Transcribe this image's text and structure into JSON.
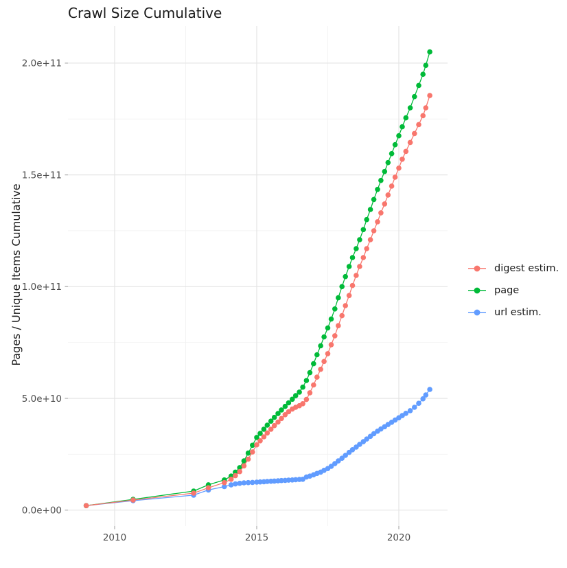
{
  "title": "Crawl Size Cumulative",
  "y_axis_label": "Pages / Unique Items Cumulative",
  "colors": {
    "background": "#ffffff",
    "grid_major": "#e4e4e4",
    "grid_minor": "#f2f2f2",
    "tick_mark": "#b3b3b3",
    "tick_label": "#4d4d4d",
    "text": "#1a1a1a"
  },
  "chart_data": {
    "type": "scatter",
    "title": "Crawl Size Cumulative",
    "xlabel": "",
    "ylabel": "Pages / Unique Items Cumulative",
    "grid": "on",
    "legend_position": "right",
    "values_unit": "billions (1e9)",
    "xlim": [
      2008.4,
      2021.7
    ],
    "ylim_billions": [
      0,
      215
    ],
    "x_ticks": [
      {
        "x": 2010,
        "label": "2010"
      },
      {
        "x": 2015,
        "label": "2015"
      },
      {
        "x": 2020,
        "label": "2020"
      }
    ],
    "x_minor_ticks": [
      2012.5,
      2017.5
    ],
    "y_ticks": [
      {
        "v": 0,
        "label": "0.0e+00"
      },
      {
        "v": 50,
        "label": "5.0e+10"
      },
      {
        "v": 100,
        "label": "1.0e+11"
      },
      {
        "v": 150,
        "label": "1.5e+11"
      },
      {
        "v": 200,
        "label": "2.0e+11"
      }
    ],
    "y_minor_ticks": [
      25,
      75,
      125,
      175
    ],
    "x": [
      2009.0,
      2010.65,
      2012.78,
      2013.3,
      2013.86,
      2014.1,
      2014.25,
      2014.4,
      2014.55,
      2014.7,
      2014.85,
      2015.0,
      2015.12,
      2015.25,
      2015.37,
      2015.5,
      2015.62,
      2015.75,
      2015.87,
      2016.0,
      2016.12,
      2016.25,
      2016.37,
      2016.5,
      2016.62,
      2016.75,
      2016.87,
      2017.0,
      2017.12,
      2017.25,
      2017.37,
      2017.5,
      2017.62,
      2017.75,
      2017.87,
      2018.0,
      2018.12,
      2018.25,
      2018.37,
      2018.5,
      2018.62,
      2018.75,
      2018.87,
      2019.0,
      2019.12,
      2019.25,
      2019.37,
      2019.5,
      2019.62,
      2019.75,
      2019.87,
      2020.0,
      2020.12,
      2020.25,
      2020.4,
      2020.55,
      2020.7,
      2020.85,
      2020.95,
      2021.09
    ],
    "series": [
      {
        "name": "digest estim.",
        "color": "#F8766D",
        "values": [
          2.0,
          4.5,
          7.6,
          10.0,
          12.3,
          13.8,
          15.4,
          17.2,
          19.8,
          22.8,
          26.0,
          29.2,
          31.0,
          32.8,
          34.5,
          36.2,
          37.8,
          39.4,
          41.0,
          42.7,
          44.0,
          45.2,
          46.0,
          46.7,
          47.6,
          49.5,
          52.5,
          56.0,
          59.5,
          63.0,
          66.5,
          70.0,
          74.0,
          78.0,
          82.5,
          87.0,
          91.5,
          96.0,
          100.5,
          105.0,
          109.0,
          113.0,
          117.0,
          121.0,
          125.0,
          129.0,
          133.0,
          137.0,
          141.0,
          145.0,
          149.0,
          153.0,
          157.0,
          160.5,
          164.5,
          168.5,
          172.5,
          176.5,
          180.0,
          185.5
        ]
      },
      {
        "name": "page",
        "color": "#00BA38",
        "values": [
          2.0,
          4.8,
          8.5,
          11.3,
          13.5,
          15.2,
          17.0,
          19.0,
          22.0,
          25.5,
          29.0,
          32.5,
          34.3,
          36.2,
          38.0,
          39.8,
          41.5,
          43.2,
          44.8,
          46.4,
          48.0,
          49.6,
          51.2,
          52.8,
          55.0,
          58.0,
          61.5,
          65.5,
          69.5,
          73.5,
          77.5,
          81.5,
          85.5,
          90.0,
          95.0,
          100.0,
          104.5,
          109.0,
          113.0,
          117.0,
          121.0,
          125.5,
          130.0,
          134.5,
          139.0,
          143.5,
          147.5,
          151.5,
          155.5,
          159.5,
          163.5,
          167.5,
          171.5,
          175.5,
          180.0,
          185.0,
          190.0,
          195.0,
          199.0,
          205.0
        ]
      },
      {
        "name": "url estim.",
        "color": "#619CFF",
        "values": [
          2.0,
          4.2,
          6.7,
          9.0,
          10.5,
          11.3,
          11.7,
          12.0,
          12.2,
          12.3,
          12.4,
          12.5,
          12.6,
          12.7,
          12.8,
          12.9,
          13.0,
          13.1,
          13.2,
          13.3,
          13.4,
          13.5,
          13.6,
          13.7,
          13.8,
          14.8,
          15.2,
          15.8,
          16.4,
          17.0,
          17.8,
          18.6,
          19.6,
          20.8,
          22.0,
          23.2,
          24.5,
          25.8,
          27.0,
          28.2,
          29.4,
          30.6,
          31.8,
          33.0,
          34.2,
          35.3,
          36.3,
          37.3,
          38.3,
          39.3,
          40.3,
          41.3,
          42.3,
          43.3,
          44.5,
          46.0,
          47.8,
          49.8,
          51.5,
          54.0
        ]
      }
    ]
  }
}
